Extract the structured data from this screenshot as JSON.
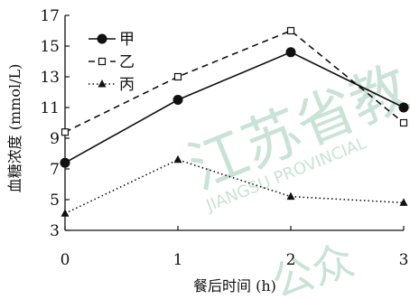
{
  "watermark": {
    "main": "江苏省教",
    "sub": "JIANGSU PROVINCIAL",
    "corner": "公众"
  },
  "chart_data": {
    "type": "line",
    "title": "",
    "xlabel": "餐后时间 (h)",
    "ylabel": "血糖浓度 (mmol/L)",
    "xlim": [
      0,
      3
    ],
    "ylim": [
      3,
      17
    ],
    "xticks": [
      0,
      1,
      2,
      3
    ],
    "yticks": [
      3,
      5,
      7,
      9,
      11,
      13,
      15,
      17
    ],
    "grid": false,
    "legend": "top-left",
    "x": [
      0,
      1,
      2,
      3
    ],
    "series": [
      {
        "name": "甲",
        "values": [
          7.4,
          11.5,
          14.6,
          11.0
        ],
        "line": "solid",
        "marker": "filled-circle",
        "color": "#111111"
      },
      {
        "name": "乙",
        "values": [
          9.4,
          13.0,
          16.0,
          10.0
        ],
        "line": "dashed",
        "marker": "open-square",
        "color": "#111111"
      },
      {
        "name": "丙",
        "values": [
          4.1,
          7.6,
          5.2,
          4.8
        ],
        "line": "dotted",
        "marker": "filled-triangle",
        "color": "#111111"
      }
    ]
  }
}
